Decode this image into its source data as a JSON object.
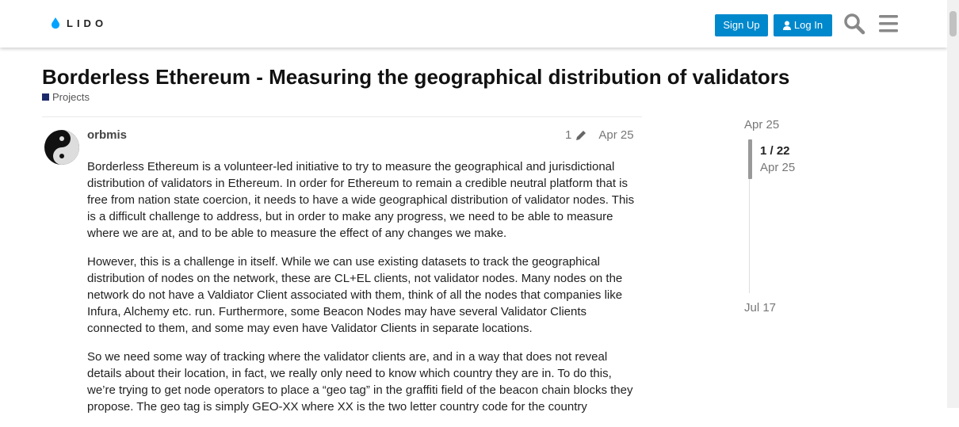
{
  "header": {
    "logo": "LIDO",
    "sign_up": "Sign Up",
    "log_in": "Log In"
  },
  "topic": {
    "title": "Borderless Ethereum - Measuring the geographical distribution of validators",
    "category": "Projects"
  },
  "post": {
    "username": "orbmis",
    "edits": "1",
    "date": "Apr 25",
    "paragraphs": [
      "Borderless Ethereum is a volunteer-led initiative to try to measure the geographical and jurisdictional distribution of validators in Ethereum. In order for Ethereum to remain a credible neutral platform that is free from nation state coercion, it needs to have a wide geographical distribution of validator nodes. This is a difficult challenge to address, but in order to make any progress, we need to be able to measure where we are at, and to be able to measure the effect of any changes we make.",
      "However, this is a challenge in itself. While we can use existing datasets to track the geographical distribution of nodes on the network, these are CL+EL clients, not validator nodes. Many nodes on the network do not have a Valdiator Client associated with them, think of all the nodes that companies like Infura, Alchemy etc. run. Furthermore, some Beacon Nodes may have several Validator Clients connected to them, and some may even have Validator Clients in separate locations.",
      "So we need some way of tracking where the validator clients are, and in a way that does not reveal details about their location, in fact, we really only need to know which country they are in. To do this, we’re trying to get node operators to place a “geo tag” in the graffiti field of the beacon chain blocks they propose. The geo tag is simply GEO-XX where XX is the two letter country code for the country"
    ]
  },
  "timeline": {
    "start": "Apr 25",
    "position": "1 / 22",
    "current_date": "Apr 25",
    "end": "Jul 17"
  }
}
